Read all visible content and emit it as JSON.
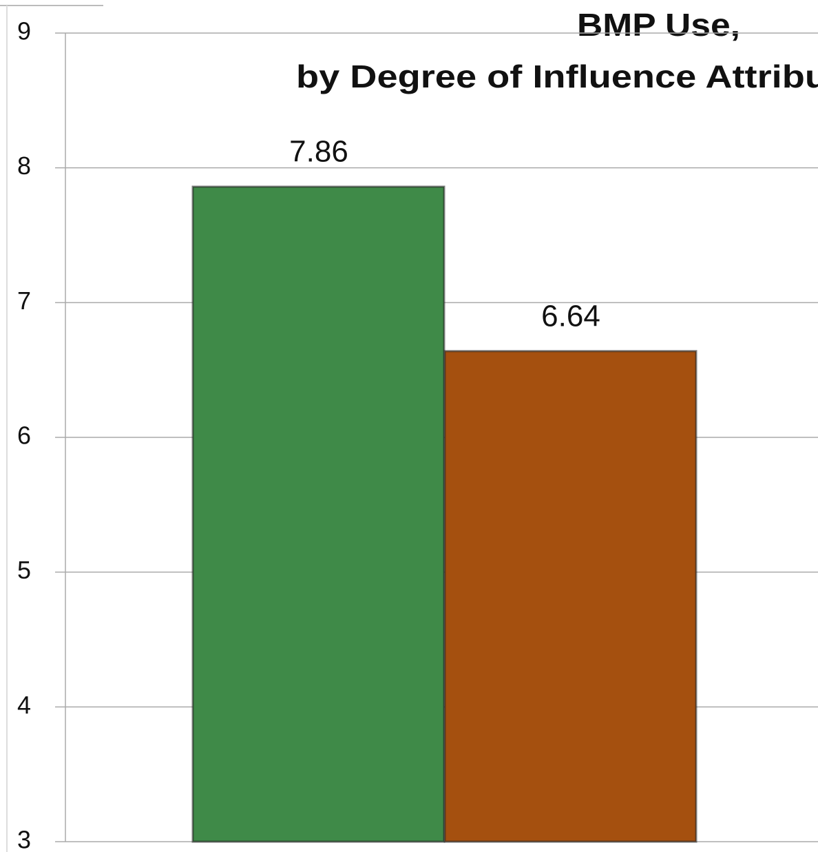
{
  "chart_data": {
    "type": "bar",
    "title_lines": [
      "BMP Use,",
      "by Degree of Influence Attribut"
    ],
    "categories": [
      null,
      null
    ],
    "values": [
      7.86,
      6.64
    ],
    "colors": [
      "#3f8a48",
      "#a5500f"
    ],
    "ylim": [
      3,
      9
    ],
    "yticks": [
      3,
      4,
      5,
      6,
      7,
      8,
      9
    ],
    "grid": true
  }
}
